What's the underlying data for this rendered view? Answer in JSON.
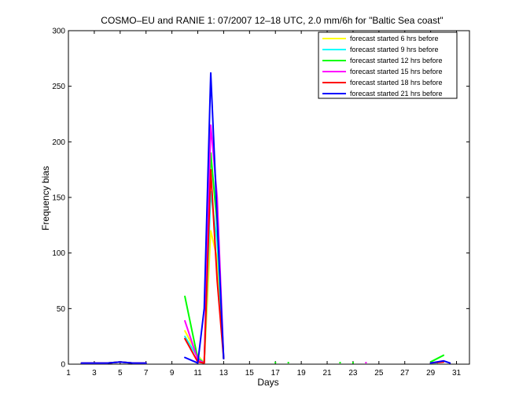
{
  "chart_data": {
    "type": "line",
    "title": "COSMO–EU and RANIE 1: 07/2007 12–18 UTC, 2.0 mm/6h for \"Baltic Sea coast\"",
    "xlabel": "Days",
    "ylabel": "Frequency bias",
    "xlim": [
      1,
      32
    ],
    "ylim": [
      0,
      300
    ],
    "xticks": [
      1,
      3,
      5,
      7,
      9,
      11,
      13,
      15,
      17,
      19,
      21,
      23,
      25,
      27,
      29,
      31
    ],
    "yticks": [
      0,
      50,
      100,
      150,
      200,
      250,
      300
    ],
    "grid": false,
    "legend_position": "top-right",
    "series": [
      {
        "name": "forecast started 6 hrs before",
        "color": "#ffff00",
        "segments": [
          [
            [
              2,
              1
            ],
            [
              3,
              1
            ],
            [
              4,
              1
            ],
            [
              5,
              2
            ],
            [
              6,
              1
            ],
            [
              7,
              1
            ]
          ],
          [
            [
              10,
              30
            ],
            [
              11,
              8
            ],
            [
              11.5,
              1
            ],
            [
              12,
              120
            ],
            [
              12.5,
              95
            ],
            [
              13,
              5
            ]
          ],
          [
            [
              29,
              1
            ],
            [
              29.5,
              1
            ]
          ]
        ]
      },
      {
        "name": "forecast started 9 hrs before",
        "color": "#00ffff",
        "segments": [
          [
            [
              2,
              1
            ],
            [
              3,
              1
            ],
            [
              4,
              1
            ],
            [
              5,
              2
            ],
            [
              6,
              1
            ],
            [
              7,
              1
            ]
          ],
          [
            [
              10,
              25
            ],
            [
              11,
              6
            ],
            [
              11.5,
              1
            ],
            [
              12,
              155
            ],
            [
              12.5,
              110
            ],
            [
              13,
              5
            ]
          ],
          [
            [
              29,
              1
            ],
            [
              29.5,
              1
            ]
          ]
        ]
      },
      {
        "name": "forecast started 12 hrs before",
        "color": "#00ff00",
        "segments": [
          [
            [
              2,
              1
            ],
            [
              3,
              1
            ],
            [
              4,
              1
            ],
            [
              5,
              2
            ],
            [
              6,
              1
            ],
            [
              7,
              1
            ]
          ],
          [
            [
              10,
              61
            ],
            [
              11,
              5
            ],
            [
              11.5,
              1
            ],
            [
              12,
              190
            ],
            [
              12.5,
              125
            ],
            [
              13,
              5
            ]
          ],
          [
            [
              29,
              2
            ],
            [
              30,
              8
            ]
          ]
        ]
      },
      {
        "name": "forecast started 15 hrs before",
        "color": "#ff00ff",
        "segments": [
          [
            [
              2,
              1
            ],
            [
              3,
              1
            ],
            [
              4,
              1
            ],
            [
              5,
              2
            ],
            [
              6,
              1
            ],
            [
              7,
              1
            ]
          ],
          [
            [
              10,
              39
            ],
            [
              11,
              4
            ],
            [
              11.5,
              1
            ],
            [
              12,
              215
            ],
            [
              12.5,
              150
            ],
            [
              13,
              5
            ]
          ],
          [
            [
              29,
              1
            ],
            [
              30,
              3
            ]
          ]
        ]
      },
      {
        "name": "forecast started 18 hrs before",
        "color": "#ff0000",
        "segments": [
          [
            [
              2,
              1
            ],
            [
              3,
              1
            ],
            [
              4,
              1
            ],
            [
              5,
              2
            ],
            [
              6,
              1
            ],
            [
              7,
              1
            ]
          ],
          [
            [
              10,
              23
            ],
            [
              11,
              2
            ],
            [
              11.5,
              1
            ],
            [
              12,
              175
            ],
            [
              12.5,
              75
            ],
            [
              13,
              5
            ]
          ],
          [
            [
              29,
              1
            ],
            [
              30,
              2
            ]
          ]
        ]
      },
      {
        "name": "forecast started 21 hrs before",
        "color": "#0000ff",
        "segments": [
          [
            [
              2,
              1
            ],
            [
              3,
              1
            ],
            [
              4,
              1
            ],
            [
              5,
              2
            ],
            [
              6,
              1
            ],
            [
              7,
              1
            ]
          ],
          [
            [
              10,
              6
            ],
            [
              11,
              1
            ],
            [
              11.5,
              50
            ],
            [
              12,
              262
            ],
            [
              12.5,
              130
            ],
            [
              13,
              5
            ]
          ],
          [
            [
              29,
              1
            ],
            [
              30,
              3
            ],
            [
              30.5,
              1
            ]
          ]
        ]
      }
    ],
    "isolated_points": [
      {
        "x": 17,
        "y": 1,
        "color": "#00ff00"
      },
      {
        "x": 18,
        "y": 1,
        "color": "#00ff00"
      },
      {
        "x": 22,
        "y": 1,
        "color": "#00ff00"
      },
      {
        "x": 23,
        "y": 1,
        "color": "#00ff00"
      },
      {
        "x": 24,
        "y": 1,
        "color": "#ff00ff"
      }
    ]
  }
}
